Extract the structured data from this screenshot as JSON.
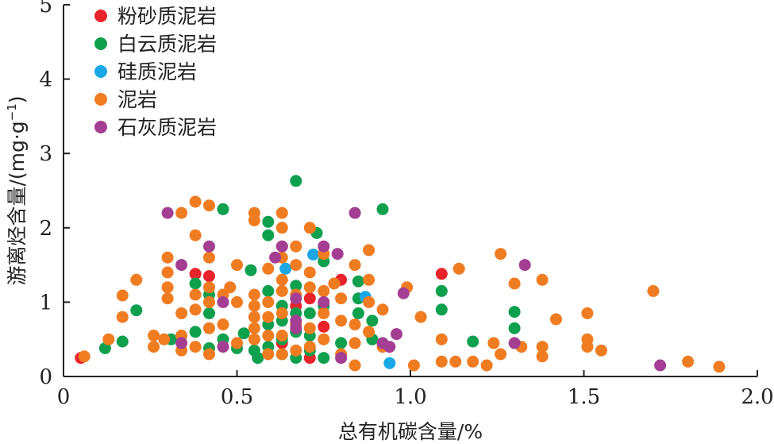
{
  "chart_data": {
    "type": "scatter",
    "xlabel": "总有机碳含量/%",
    "ylabel_main": "游离烃含量/(mg·g",
    "ylabel_sup": "−1",
    "ylabel_close": ")",
    "xlim": [
      0,
      2.0
    ],
    "ylim": [
      0,
      5
    ],
    "xticks": [
      "0",
      "0.5",
      "1.0",
      "1.5",
      "2.0"
    ],
    "yticks": [
      "0",
      "1",
      "2",
      "3",
      "4",
      "5"
    ],
    "legend_position": "top-left",
    "grid": false,
    "series": [
      {
        "name": "粉砂质泥岩",
        "color": "#e8232a",
        "points": [
          [
            0.05,
            0.25
          ],
          [
            0.38,
            1.38
          ],
          [
            0.42,
            1.35
          ],
          [
            0.63,
            0.45
          ],
          [
            0.67,
            0.95
          ],
          [
            0.71,
            1.05
          ],
          [
            0.75,
            0.67
          ],
          [
            0.8,
            1.3
          ],
          [
            0.71,
            0.25
          ],
          [
            1.09,
            1.38
          ]
        ]
      },
      {
        "name": "白云质泥岩",
        "color": "#0fa04e",
        "points": [
          [
            0.12,
            0.38
          ],
          [
            0.17,
            0.47
          ],
          [
            0.21,
            0.89
          ],
          [
            0.31,
            0.5
          ],
          [
            0.38,
            1.25
          ],
          [
            0.38,
            0.6
          ],
          [
            0.42,
            0.38
          ],
          [
            0.42,
            1.1
          ],
          [
            0.42,
            0.85
          ],
          [
            0.46,
            2.25
          ],
          [
            0.46,
            0.5
          ],
          [
            0.5,
            0.38
          ],
          [
            0.52,
            0.58
          ],
          [
            0.54,
            1.43
          ],
          [
            0.55,
            0.35
          ],
          [
            0.56,
            0.25
          ],
          [
            0.59,
            2.08
          ],
          [
            0.59,
            1.9
          ],
          [
            0.59,
            1.15
          ],
          [
            0.59,
            0.7
          ],
          [
            0.59,
            0.4
          ],
          [
            0.63,
            0.95
          ],
          [
            0.63,
            0.75
          ],
          [
            0.63,
            0.5
          ],
          [
            0.63,
            0.3
          ],
          [
            0.67,
            2.63
          ],
          [
            0.67,
            1.22
          ],
          [
            0.67,
            0.85
          ],
          [
            0.67,
            0.6
          ],
          [
            0.67,
            0.25
          ],
          [
            0.71,
            0.85
          ],
          [
            0.71,
            0.55
          ],
          [
            0.71,
            0.35
          ],
          [
            0.73,
            1.93
          ],
          [
            0.75,
            1.55
          ],
          [
            0.75,
            0.95
          ],
          [
            0.75,
            0.25
          ],
          [
            0.8,
            0.45
          ],
          [
            0.85,
            1.28
          ],
          [
            0.85,
            1.05
          ],
          [
            0.85,
            0.85
          ],
          [
            0.89,
            0.75
          ],
          [
            0.89,
            0.5
          ],
          [
            0.92,
            2.25
          ],
          [
            1.09,
            1.15
          ],
          [
            1.09,
            0.9
          ],
          [
            1.18,
            0.47
          ],
          [
            1.3,
            0.87
          ],
          [
            1.3,
            0.65
          ]
        ]
      },
      {
        "name": "硅质泥岩",
        "color": "#1aa7e5",
        "points": [
          [
            0.64,
            1.45
          ],
          [
            0.72,
            1.64
          ],
          [
            0.87,
            1.07
          ],
          [
            0.94,
            0.18
          ]
        ]
      },
      {
        "name": "泥岩",
        "color": "#f07c22",
        "points": [
          [
            0.06,
            0.27
          ],
          [
            0.13,
            0.5
          ],
          [
            0.17,
            1.09
          ],
          [
            0.17,
            0.8
          ],
          [
            0.21,
            1.3
          ],
          [
            0.26,
            0.55
          ],
          [
            0.26,
            0.4
          ],
          [
            0.29,
            0.5
          ],
          [
            0.3,
            1.6
          ],
          [
            0.3,
            1.4
          ],
          [
            0.3,
            1.2
          ],
          [
            0.3,
            1.05
          ],
          [
            0.34,
            2.2
          ],
          [
            0.34,
            0.85
          ],
          [
            0.34,
            0.55
          ],
          [
            0.34,
            0.35
          ],
          [
            0.38,
            2.35
          ],
          [
            0.38,
            1.9
          ],
          [
            0.38,
            1.1
          ],
          [
            0.38,
            0.9
          ],
          [
            0.38,
            0.4
          ],
          [
            0.42,
            2.3
          ],
          [
            0.42,
            1.6
          ],
          [
            0.42,
            1.2
          ],
          [
            0.42,
            1.0
          ],
          [
            0.42,
            0.65
          ],
          [
            0.42,
            0.3
          ],
          [
            0.46,
            1.1
          ],
          [
            0.46,
            0.7
          ],
          [
            0.48,
            1.2
          ],
          [
            0.5,
            1.5
          ],
          [
            0.5,
            1.0
          ],
          [
            0.5,
            0.45
          ],
          [
            0.55,
            2.2
          ],
          [
            0.55,
            2.1
          ],
          [
            0.55,
            1.1
          ],
          [
            0.55,
            0.95
          ],
          [
            0.55,
            0.8
          ],
          [
            0.55,
            0.65
          ],
          [
            0.55,
            0.5
          ],
          [
            0.59,
            1.45
          ],
          [
            0.59,
            1.0
          ],
          [
            0.59,
            0.8
          ],
          [
            0.59,
            0.55
          ],
          [
            0.59,
            0.3
          ],
          [
            0.63,
            2.2
          ],
          [
            0.63,
            2.0
          ],
          [
            0.63,
            1.75
          ],
          [
            0.63,
            1.6
          ],
          [
            0.63,
            1.3
          ],
          [
            0.63,
            1.15
          ],
          [
            0.63,
            0.85
          ],
          [
            0.63,
            0.55
          ],
          [
            0.63,
            0.3
          ],
          [
            0.67,
            1.75
          ],
          [
            0.67,
            1.5
          ],
          [
            0.67,
            1.1
          ],
          [
            0.67,
            0.7
          ],
          [
            0.67,
            0.35
          ],
          [
            0.71,
            2.0
          ],
          [
            0.71,
            1.4
          ],
          [
            0.71,
            1.2
          ],
          [
            0.71,
            0.65
          ],
          [
            0.71,
            0.4
          ],
          [
            0.75,
            1.65
          ],
          [
            0.75,
            1.15
          ],
          [
            0.75,
            0.85
          ],
          [
            0.75,
            0.5
          ],
          [
            0.78,
            1.25
          ],
          [
            0.8,
            1.05
          ],
          [
            0.8,
            0.75
          ],
          [
            0.8,
            0.3
          ],
          [
            0.84,
            1.5
          ],
          [
            0.84,
            0.7
          ],
          [
            0.84,
            0.45
          ],
          [
            0.84,
            0.15
          ],
          [
            0.88,
            1.7
          ],
          [
            0.88,
            1.3
          ],
          [
            0.88,
            1.0
          ],
          [
            0.88,
            0.6
          ],
          [
            0.92,
            0.9
          ],
          [
            0.92,
            0.4
          ],
          [
            0.99,
            1.2
          ],
          [
            1.01,
            0.15
          ],
          [
            1.03,
            0.8
          ],
          [
            1.09,
            0.5
          ],
          [
            1.09,
            0.2
          ],
          [
            1.13,
            0.2
          ],
          [
            1.14,
            1.45
          ],
          [
            1.18,
            0.2
          ],
          [
            1.22,
            0.15
          ],
          [
            1.24,
            0.45
          ],
          [
            1.26,
            1.65
          ],
          [
            1.26,
            0.3
          ],
          [
            1.3,
            1.25
          ],
          [
            1.32,
            0.4
          ],
          [
            1.38,
            1.3
          ],
          [
            1.38,
            0.4
          ],
          [
            1.38,
            0.27
          ],
          [
            1.42,
            0.77
          ],
          [
            1.51,
            0.85
          ],
          [
            1.51,
            0.5
          ],
          [
            1.51,
            0.4
          ],
          [
            1.55,
            0.35
          ],
          [
            1.7,
            1.15
          ],
          [
            1.8,
            0.2
          ],
          [
            1.89,
            0.13
          ]
        ]
      },
      {
        "name": "石灰质泥岩",
        "color": "#a43e93",
        "points": [
          [
            0.3,
            2.2
          ],
          [
            0.34,
            1.5
          ],
          [
            0.34,
            0.45
          ],
          [
            0.42,
            1.75
          ],
          [
            0.46,
            1.0
          ],
          [
            0.46,
            0.4
          ],
          [
            0.61,
            1.6
          ],
          [
            0.63,
            1.75
          ],
          [
            0.67,
            1.05
          ],
          [
            0.67,
            0.75
          ],
          [
            0.67,
            0.65
          ],
          [
            0.75,
            1.75
          ],
          [
            0.75,
            1.0
          ],
          [
            0.79,
            1.65
          ],
          [
            0.8,
            0.25
          ],
          [
            0.84,
            2.2
          ],
          [
            0.92,
            0.45
          ],
          [
            0.94,
            0.4
          ],
          [
            0.96,
            0.57
          ],
          [
            0.98,
            1.12
          ],
          [
            1.3,
            0.45
          ],
          [
            1.33,
            1.5
          ],
          [
            1.72,
            0.15
          ]
        ]
      }
    ]
  }
}
